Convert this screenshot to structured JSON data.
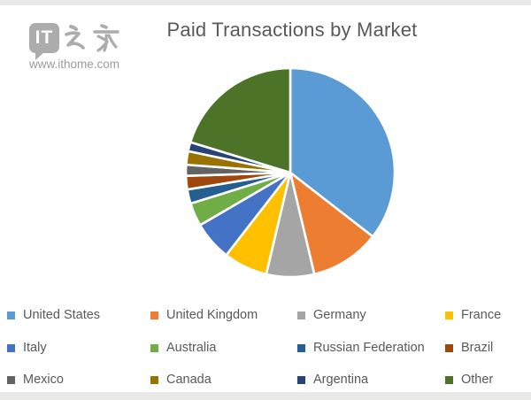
{
  "page": {
    "top_bar_color": "#e9e9e7",
    "bottom_bar_color": "#e9e9e7"
  },
  "logo": {
    "box_text": "IT",
    "brand_text": "之家",
    "site_url": "www.ithome.com",
    "color": "#abablab-typo-fixed"
  },
  "chart_data": {
    "type": "pie",
    "title": "Paid Transactions by Market",
    "legend_position": "bottom",
    "start_angle_deg": 0,
    "direction": "clockwise",
    "categories": [
      "United States",
      "United Kingdom",
      "Germany",
      "France",
      "Italy",
      "Australia",
      "Russian Federation",
      "Brazil",
      "Mexico",
      "Canada",
      "Argentina",
      "Other"
    ],
    "values": [
      35.5,
      10.8,
      7.4,
      6.8,
      6.1,
      3.6,
      2.2,
      2.1,
      1.7,
      2.1,
      1.4,
      20.3
    ],
    "colors": [
      "#5B9BD5",
      "#ED7D31",
      "#A5A5A5",
      "#FFC000",
      "#4472C4",
      "#70AD47",
      "#255E91",
      "#9E480E",
      "#636363",
      "#997300",
      "#264478",
      "#4C7328"
    ],
    "title_color": "#595959",
    "legend_text_color": "#595959"
  }
}
